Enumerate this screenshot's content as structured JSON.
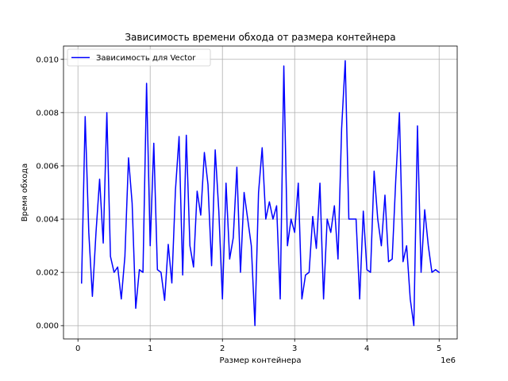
{
  "chart_data": {
    "type": "line",
    "title": "Зависимость времени обхода от размера контейнера",
    "xlabel": "Размер контейнера",
    "ylabel": "Время обхода",
    "x_offset_label": "1e6",
    "xlim": [
      -0.2,
      5.25
    ],
    "ylim": [
      -0.0005,
      0.0105
    ],
    "x_ticks": [
      0,
      1,
      2,
      3,
      4,
      5
    ],
    "x_tick_labels": [
      "0",
      "1",
      "2",
      "3",
      "4",
      "5"
    ],
    "y_ticks": [
      0.0,
      0.002,
      0.004,
      0.006,
      0.008,
      0.01
    ],
    "y_tick_labels": [
      "0.000",
      "0.002",
      "0.004",
      "0.006",
      "0.008",
      "0.010"
    ],
    "grid": true,
    "legend_position": "top-left",
    "series": [
      {
        "name": "Зависимость для Vector",
        "color": "#0000ff",
        "x": [
          0.05,
          0.1,
          0.15,
          0.2,
          0.25,
          0.3,
          0.35,
          0.4,
          0.45,
          0.5,
          0.55,
          0.6,
          0.65,
          0.7,
          0.75,
          0.8,
          0.85,
          0.9,
          0.95,
          1.0,
          1.05,
          1.1,
          1.15,
          1.2,
          1.25,
          1.3,
          1.35,
          1.4,
          1.45,
          1.5,
          1.55,
          1.6,
          1.65,
          1.7,
          1.75,
          1.8,
          1.85,
          1.9,
          1.95,
          2.0,
          2.05,
          2.1,
          2.15,
          2.2,
          2.25,
          2.3,
          2.35,
          2.4,
          2.45,
          2.5,
          2.55,
          2.6,
          2.65,
          2.7,
          2.75,
          2.8,
          2.85,
          2.9,
          2.95,
          3.0,
          3.05,
          3.1,
          3.15,
          3.2,
          3.25,
          3.3,
          3.35,
          3.4,
          3.45,
          3.5,
          3.55,
          3.6,
          3.65,
          3.7,
          3.75,
          3.8,
          3.85,
          3.9,
          3.95,
          4.0,
          4.05,
          4.1,
          4.15,
          4.2,
          4.25,
          4.3,
          4.35,
          4.4,
          4.45,
          4.5,
          4.55,
          4.6,
          4.65,
          4.7,
          4.75,
          4.8,
          4.85,
          4.9,
          4.95,
          5.0
        ],
        "y": [
          0.0016,
          0.00785,
          0.0035,
          0.0011,
          0.0035,
          0.0055,
          0.0031,
          0.008,
          0.0026,
          0.002,
          0.0022,
          0.001,
          0.0026,
          0.0063,
          0.0046,
          0.00065,
          0.0021,
          0.002,
          0.0091,
          0.003,
          0.00685,
          0.0021,
          0.002,
          0.00095,
          0.00305,
          0.0016,
          0.0051,
          0.0071,
          0.0019,
          0.00715,
          0.003,
          0.0022,
          0.00505,
          0.00415,
          0.0065,
          0.0053,
          0.00225,
          0.0066,
          0.0043,
          0.001,
          0.00535,
          0.0025,
          0.0033,
          0.00595,
          0.002,
          0.005,
          0.004,
          0.003,
          0.0,
          0.005,
          0.00668,
          0.004,
          0.00465,
          0.004,
          0.0045,
          0.001,
          0.00975,
          0.003,
          0.004,
          0.0035,
          0.00535,
          0.001,
          0.0019,
          0.002,
          0.0041,
          0.0029,
          0.00535,
          0.001,
          0.004,
          0.0035,
          0.0045,
          0.0025,
          0.0074,
          0.00995,
          0.004,
          0.004,
          0.004,
          0.001,
          0.0043,
          0.0021,
          0.002,
          0.0058,
          0.004,
          0.003,
          0.0049,
          0.0024,
          0.0025,
          0.0055,
          0.008,
          0.0024,
          0.003,
          0.001,
          0.0,
          0.0075,
          0.002,
          0.00435,
          0.003,
          0.002,
          0.0021,
          0.002
        ]
      }
    ]
  }
}
